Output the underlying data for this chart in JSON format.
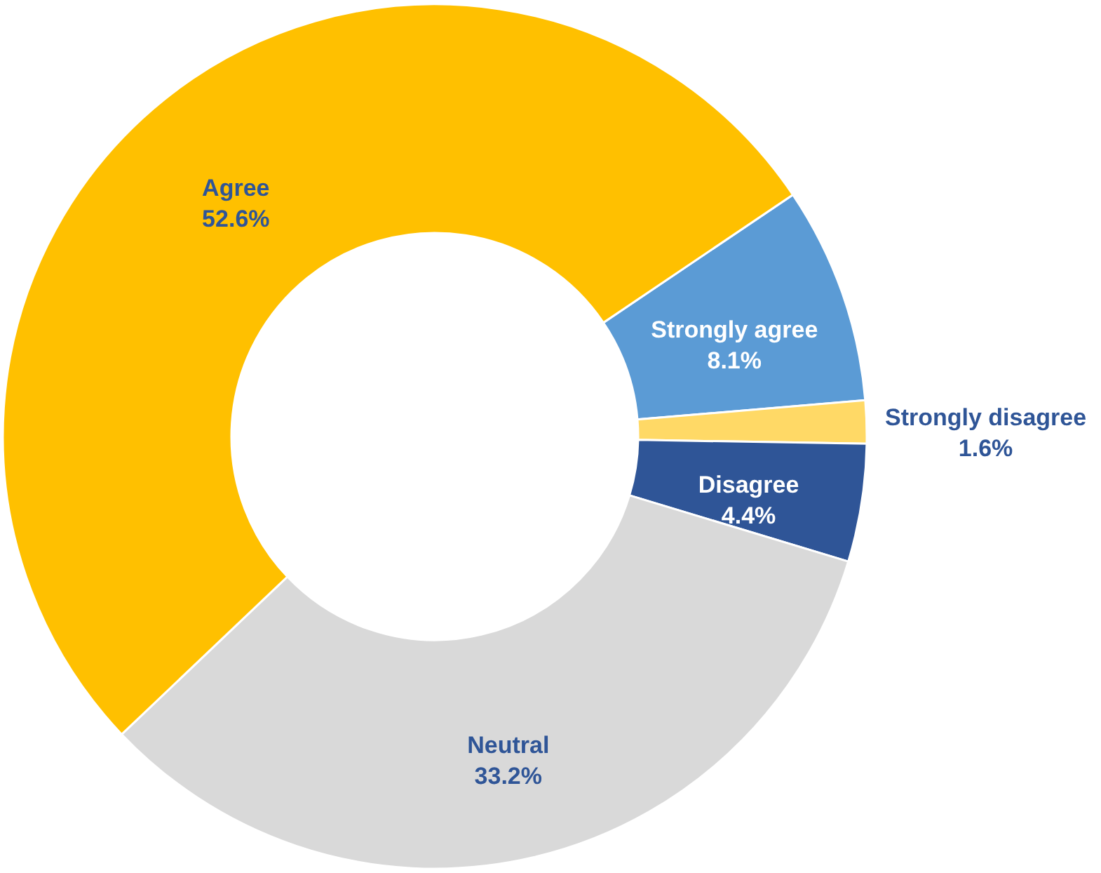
{
  "chart_data": {
    "type": "donut",
    "categories": [
      "Strongly agree",
      "Strongly disagree",
      "Disagree",
      "Neutral",
      "Agree"
    ],
    "values": [
      8.1,
      1.6,
      4.4,
      33.2,
      52.6
    ],
    "colors": [
      "#5b9bd5",
      "#ffd966",
      "#2f5597",
      "#d9d9d9",
      "#ffc000"
    ],
    "value_labels": [
      "8.1%",
      "1.6%",
      "4.4%",
      "33.2%",
      "52.6%"
    ]
  }
}
